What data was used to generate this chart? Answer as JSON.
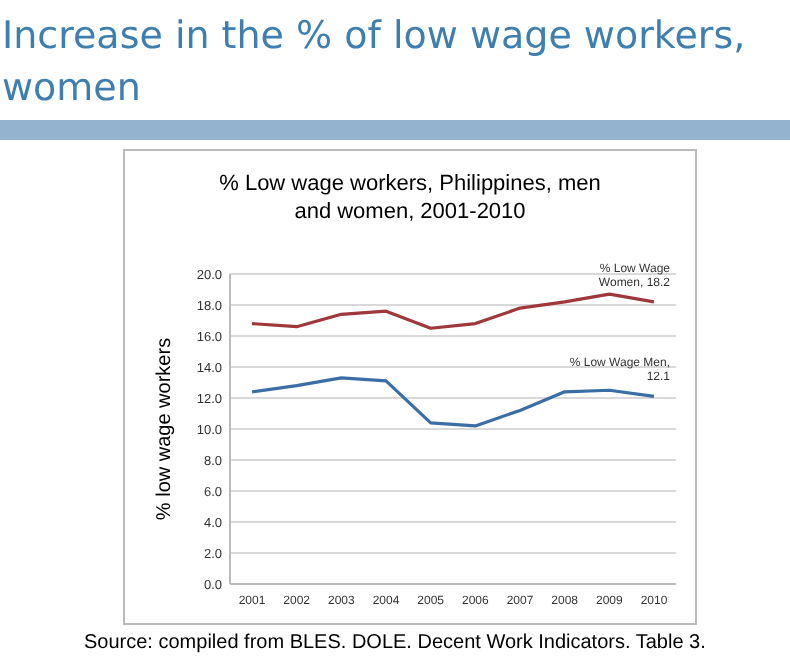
{
  "chart_data": {
    "type": "line",
    "title": "Increase in the % of low wage workers, women",
    "subtitle": "% Low wage workers, Philippines, men and women, 2001-2010",
    "ylabel": "% low wage workers",
    "categories": [
      "2001",
      "2002",
      "2003",
      "2004",
      "2005",
      "2006",
      "2007",
      "2008",
      "2009",
      "2010"
    ],
    "series": [
      {
        "color": "#a0373a",
        "values": [
          16.8,
          16.6,
          17.4,
          17.6,
          16.5,
          16.8,
          17.8,
          18.2,
          18.7,
          18.2
        ]
      },
      {
        "color": "#3b6ea5",
        "values": [
          12.4,
          12.8,
          13.3,
          13.1,
          10.4,
          10.2,
          11.2,
          12.4,
          12.5,
          12.1
        ]
      }
    ],
    "annotations": [
      {
        "text": "% Low Wage Women, 18.2",
        "x": "2010",
        "y": 18.2
      },
      {
        "text": "% Low Wage Men, 12.1",
        "x": "2010",
        "y": 12.1
      },
      "Source: compiled from BLES. DOLE. Decent Work Indicators. Table 3."
    ],
    "ylim": [
      0,
      20
    ],
    "yticks": [
      {
        "value": 0,
        "label": "0.0"
      },
      {
        "value": 2,
        "label": "2.0"
      },
      {
        "value": 4,
        "label": "4.0"
      },
      {
        "value": 6,
        "label": "6.0"
      },
      {
        "value": 8,
        "label": "8.0"
      },
      {
        "value": 10,
        "label": "10.0"
      },
      {
        "value": 12,
        "label": "12.0"
      },
      {
        "value": 14,
        "label": "14.0"
      },
      {
        "value": 16,
        "label": "16.0"
      },
      {
        "value": 18,
        "label": "18.0"
      },
      {
        "value": 20,
        "label": "20.0"
      }
    ],
    "grid": "y",
    "marker": "none",
    "line_style": "solid"
  }
}
